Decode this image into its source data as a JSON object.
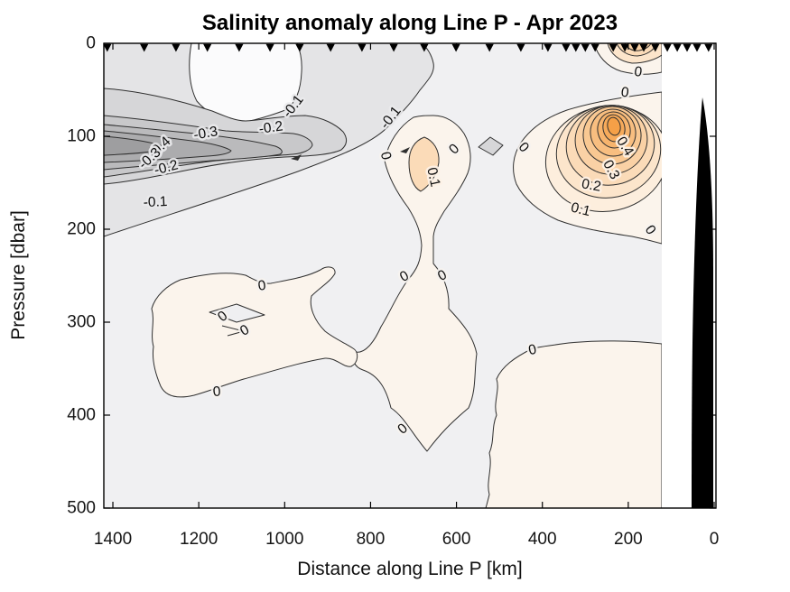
{
  "chart_data": {
    "type": "filled_contour",
    "title": "Salinity anomaly along Line P - Apr 2023",
    "xlabel": "Distance along Line P [km]",
    "ylabel": "Pressure [dbar]",
    "x_ticks": [
      1400,
      1200,
      1000,
      800,
      600,
      400,
      200,
      0
    ],
    "y_ticks": [
      0,
      100,
      200,
      300,
      400,
      500
    ],
    "x_axis": {
      "direction": "reversed",
      "left_km": 1421,
      "right_km": -4
    },
    "y_axis": {
      "direction": "down",
      "top_dbar": 0,
      "bottom_dbar": 500
    },
    "contour_interval": 0.05,
    "labeled_interval": 0.1,
    "anomaly_range": [
      -0.45,
      0.45
    ],
    "negative_extreme": {
      "value": -0.4,
      "distance_km": 1380,
      "pressure_dbar": 110
    },
    "positive_extreme": {
      "value": 0.45,
      "distance_km": 233,
      "pressure_dbar": 90
    },
    "nearshore_no_data_km": [
      0,
      122
    ],
    "bathymetry_mask_km": [
      0,
      53
    ],
    "stations_km": [
      1413,
      1327,
      1253,
      1180,
      1106,
      1034,
      965,
      893,
      820,
      746,
      675,
      601,
      523,
      450,
      387,
      345,
      322,
      300,
      277,
      235,
      208,
      185,
      164,
      137,
      109,
      86,
      63,
      40,
      13
    ],
    "contour_labels": [
      {
        "text": "-0.1",
        "km": 1301,
        "dbar": 171,
        "rot": -3
      },
      {
        "text": "-0.4",
        "km": 1291,
        "dbar": 112,
        "rot": -42
      },
      {
        "text": "-0.3",
        "km": 1314,
        "dbar": 124,
        "rot": -42
      },
      {
        "text": "-0.2",
        "km": 1276,
        "dbar": 134,
        "rot": -15
      },
      {
        "text": "-0.3",
        "km": 1184,
        "dbar": 97,
        "rot": -10
      },
      {
        "text": "-0.2",
        "km": 1032,
        "dbar": 91,
        "rot": -8
      },
      {
        "text": "-0.1",
        "km": 980,
        "dbar": 68,
        "rot": -52
      },
      {
        "text": "-0.1",
        "km": 753,
        "dbar": 80,
        "rot": -52
      },
      {
        "text": "0",
        "km": 765,
        "dbar": 121,
        "rot": 78
      },
      {
        "text": "0.1",
        "km": 654,
        "dbar": 144,
        "rot": 78
      },
      {
        "text": "0",
        "km": 605,
        "dbar": 114,
        "rot": -45
      },
      {
        "text": "0",
        "km": 444,
        "dbar": 112,
        "rot": 48
      },
      {
        "text": "0",
        "km": 177,
        "dbar": 31,
        "rot": 8
      },
      {
        "text": "0",
        "km": 208,
        "dbar": 53,
        "rot": 8
      },
      {
        "text": "0.4",
        "km": 208,
        "dbar": 111,
        "rot": 58
      },
      {
        "text": "0.3",
        "km": 240,
        "dbar": 136,
        "rot": 62
      },
      {
        "text": "0.2",
        "km": 286,
        "dbar": 153,
        "rot": 10
      },
      {
        "text": "0.1",
        "km": 311,
        "dbar": 179,
        "rot": 14
      },
      {
        "text": "0",
        "km": 149,
        "dbar": 201,
        "rot": 55
      },
      {
        "text": "0",
        "km": 721,
        "dbar": 251,
        "rot": -28
      },
      {
        "text": "0",
        "km": 633,
        "dbar": 250,
        "rot": -28
      },
      {
        "text": "0",
        "km": 1053,
        "dbar": 261,
        "rot": -8
      },
      {
        "text": "0",
        "km": 1144,
        "dbar": 294,
        "rot": -38
      },
      {
        "text": "0",
        "km": 1093,
        "dbar": 309,
        "rot": -30
      },
      {
        "text": "0",
        "km": 1158,
        "dbar": 375,
        "rot": -5
      },
      {
        "text": "0",
        "km": 725,
        "dbar": 415,
        "rot": -40
      },
      {
        "text": "0",
        "km": 423,
        "dbar": 330,
        "rot": -12
      }
    ],
    "palette": {
      "background_band": "#f0f0f2",
      "negative_bands": [
        "#e4e4e6",
        "#d6d6d8",
        "#c8c8ca",
        "#bababc",
        "#acacae",
        "#9e9ea0"
      ],
      "white_band": "#fbfbfc",
      "positive_bands": [
        "#fbf4ec",
        "#fdeedd",
        "#fce5cb",
        "#fbdbb8",
        "#fad1a5",
        "#f9c892",
        "#f8be80",
        "#f7b46d",
        "#f6aa5a",
        "#f5a047"
      ],
      "land_mask": "#000000",
      "no_data": "#ffffff",
      "contour_line": "#2f2f2f",
      "station_marker": "#000000"
    }
  }
}
